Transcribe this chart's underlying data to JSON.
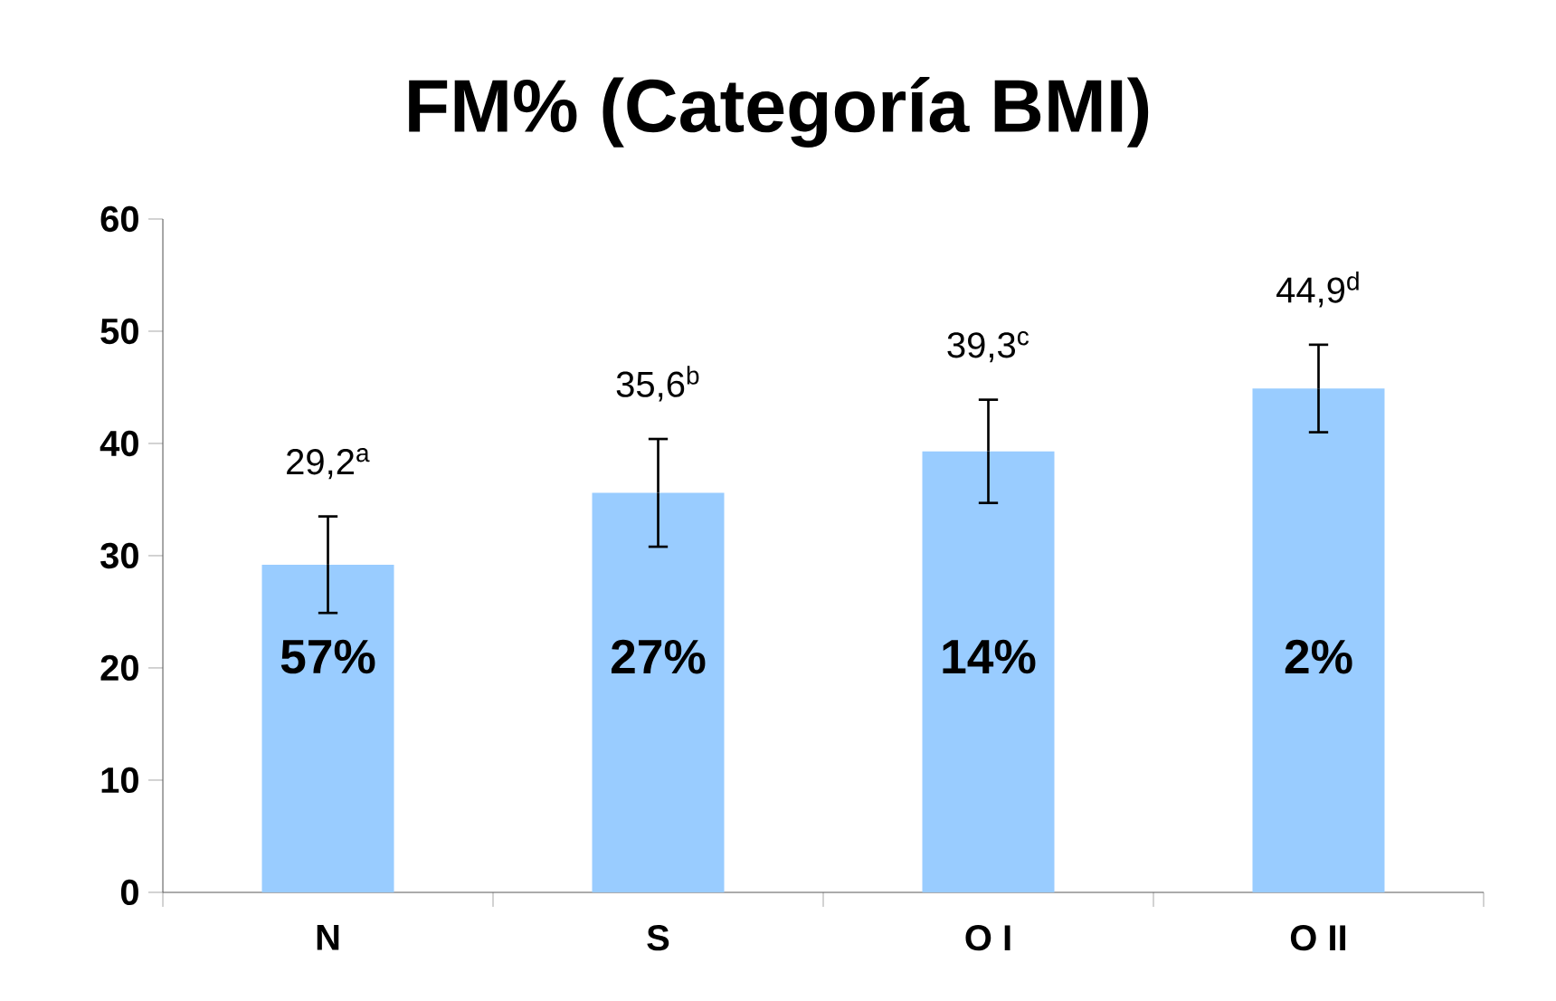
{
  "chart_data": {
    "type": "bar",
    "title": "FM% (Categoría BMI)",
    "categories": [
      "N",
      "S",
      "O I",
      "O II"
    ],
    "values": [
      29.2,
      35.6,
      39.3,
      44.9
    ],
    "errors": [
      4.3,
      4.8,
      4.6,
      3.9
    ],
    "value_labels": [
      "29,2$^{a}$",
      "35,6$^{b}$",
      "39,3$^{c}$",
      "44,9$^{d}$"
    ],
    "color": "#99ccff",
    "ylim": [
      0,
      60
    ],
    "yticks": [
      0,
      10,
      20,
      30,
      40,
      50,
      60
    ],
    "grid": false,
    "annotations": [
      "57%",
      "27%",
      "14%",
      "2%"
    ]
  }
}
